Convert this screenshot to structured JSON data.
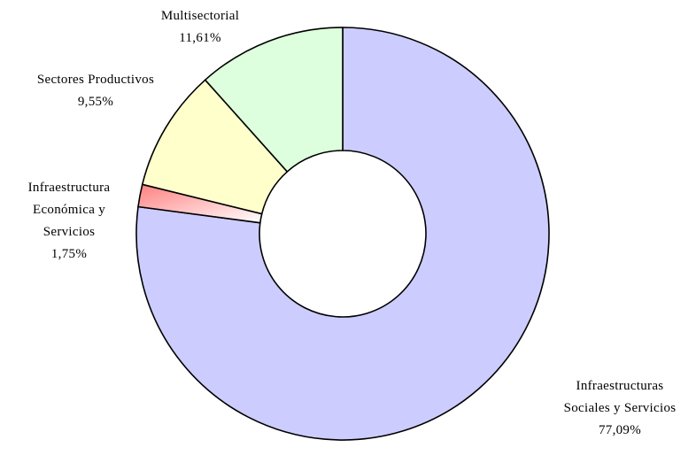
{
  "chart_data": {
    "type": "pie",
    "variant": "doughnut",
    "title": "",
    "slices": [
      {
        "label_lines": [
          "Infraestructuras",
          "Sociales y Servicios"
        ],
        "value": 77.09,
        "value_text": "77,09%",
        "color": "#ccccff"
      },
      {
        "label_lines": [
          "Infraestructura",
          "Económica y",
          "Servicios"
        ],
        "value": 1.75,
        "value_text": "1,75%",
        "color": "#ff8080",
        "gradient_to": "#ffffff"
      },
      {
        "label_lines": [
          "Sectores Productivos"
        ],
        "value": 9.55,
        "value_text": "9,55%",
        "color": "#ffffcc"
      },
      {
        "label_lines": [
          "Multisectorial"
        ],
        "value": 11.61,
        "value_text": "11,61%",
        "color": "#ddffdd"
      }
    ],
    "legend": "none",
    "border_color": "#000000"
  }
}
